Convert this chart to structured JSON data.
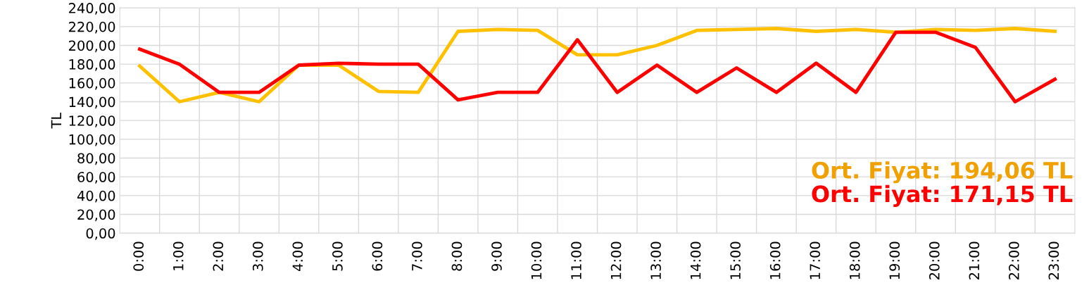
{
  "chart_data": {
    "type": "line",
    "ylabel": "TL",
    "categories": [
      "0:00",
      "1:00",
      "2:00",
      "3:00",
      "4:00",
      "5:00",
      "6:00",
      "7:00",
      "8:00",
      "9:00",
      "10:00",
      "11:00",
      "12:00",
      "13:00",
      "14:00",
      "15:00",
      "16:00",
      "17:00",
      "18:00",
      "19:00",
      "20:00",
      "21:00",
      "22:00",
      "23:00"
    ],
    "series": [
      {
        "color": "#ffc000",
        "values": [
          178,
          140,
          150,
          140,
          179,
          179,
          151,
          150,
          215,
          217,
          216,
          190,
          190,
          200,
          216,
          217,
          218,
          215,
          217,
          214,
          217,
          216,
          218,
          215
        ]
      },
      {
        "color": "#ff0000",
        "values": [
          196,
          180,
          150,
          150,
          179,
          181,
          180,
          180,
          142,
          150,
          150,
          206,
          150,
          179,
          150,
          176,
          150,
          181,
          150,
          214,
          214,
          198,
          140,
          164
        ]
      }
    ],
    "ylim": [
      0,
      240
    ],
    "yticks": [
      {
        "value": 0,
        "label": "0,00"
      },
      {
        "value": 20,
        "label": "20,00"
      },
      {
        "value": 40,
        "label": "40,00"
      },
      {
        "value": 60,
        "label": "60,00"
      },
      {
        "value": 80,
        "label": "80,00"
      },
      {
        "value": 100,
        "label": "100,00"
      },
      {
        "value": 120,
        "label": "120,00"
      },
      {
        "value": 140,
        "label": "140,00"
      },
      {
        "value": 160,
        "label": "160,00"
      },
      {
        "value": 180,
        "label": "180,00"
      },
      {
        "value": 200,
        "label": "200,00"
      },
      {
        "value": 220,
        "label": "220,00"
      },
      {
        "value": 240,
        "label": "240,00"
      }
    ],
    "grid": true,
    "marker": "none",
    "line_style": "solid",
    "annotations": [
      "Ort. Fiyat: 194,06 TL",
      "Ort. Fiyat: 171,15 TL"
    ]
  }
}
